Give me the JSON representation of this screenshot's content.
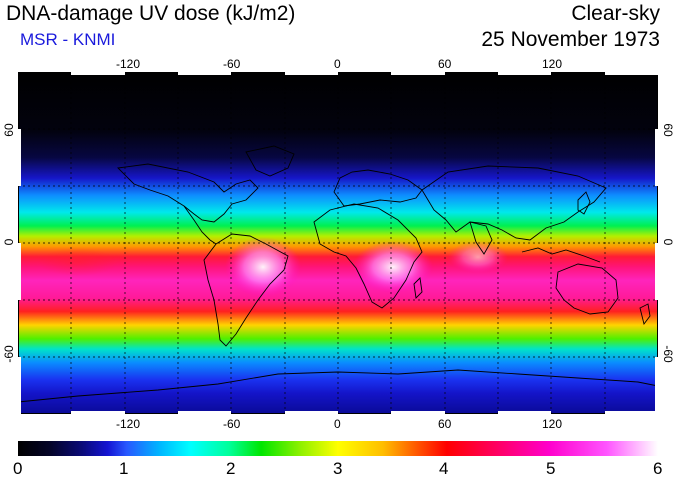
{
  "header": {
    "title": "DNA-damage UV dose (kJ/m2)",
    "subtitle": "MSR - KNMI",
    "mode": "Clear-sky",
    "date": "25 November 1973"
  },
  "map": {
    "lon_ticks": [
      "-120",
      "-60",
      "0",
      "60",
      "120"
    ],
    "lat_ticks": [
      "60",
      "0",
      "-60"
    ]
  },
  "colorbar": {
    "labels": [
      "0",
      "1",
      "2",
      "3",
      "4",
      "5",
      "6"
    ]
  },
  "colors": {
    "subtitle": "#1a1adc",
    "coastline": "#000000"
  }
}
